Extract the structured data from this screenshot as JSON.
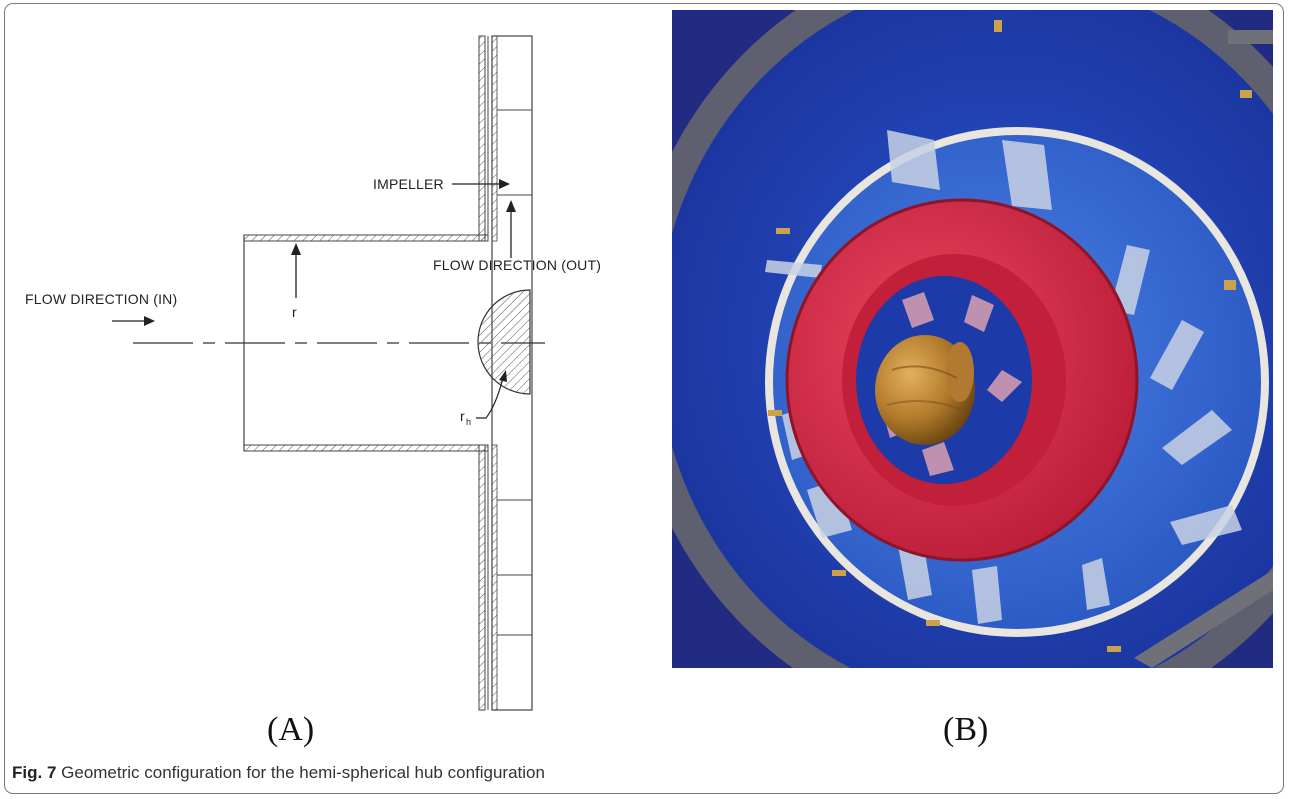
{
  "figure": {
    "panel_a_label": "(A)",
    "panel_b_label": "(B)",
    "caption_prefix": "Fig. 7",
    "caption_text": "Geometric configuration for the hemi-spherical hub configuration"
  },
  "diagram": {
    "impeller_label": "IMPELLER",
    "flow_out_label": "FLOW DIRECTION (OUT)",
    "flow_in_label": "FLOW DIRECTION (IN)",
    "radius_label": "r",
    "hub_radius_label": "r",
    "hub_radius_subscript": "h"
  },
  "photo": {
    "colors": {
      "housing": "#1f3fb8",
      "impeller_plate": "#3a6fd6",
      "shroud": "#d62845",
      "hub": "#b9822f",
      "frame": "#6f7078"
    }
  }
}
